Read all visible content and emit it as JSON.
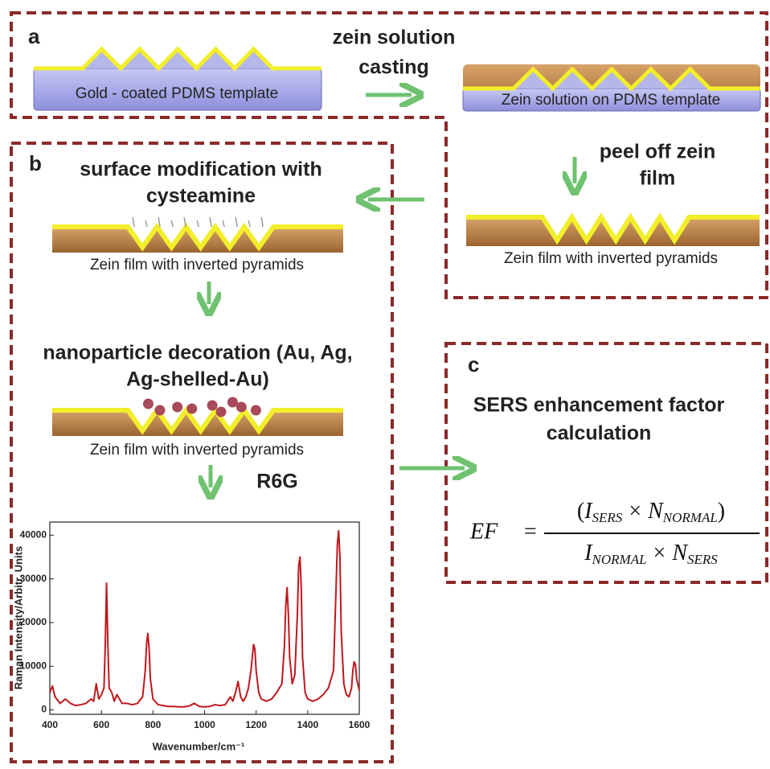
{
  "panels": {
    "a": "a",
    "b": "b",
    "c": "c"
  },
  "steps": {
    "casting": [
      "zein solution",
      "casting"
    ],
    "peel": [
      "peel off zein",
      "film"
    ],
    "surface": [
      "surface modification with",
      "cysteamine"
    ],
    "decoration": [
      "nanoparticle decoration (Au, Ag,",
      "Ag-shelled-Au)"
    ],
    "r6g": "R6G",
    "sers": [
      "SERS enhancement factor",
      "calculation"
    ]
  },
  "captions": {
    "template": "Gold - coated PDMS template",
    "solution": "Zein solution on PDMS template",
    "film_peeled": "Zein film with inverted pyramids",
    "film_modified": "Zein film with inverted pyramids",
    "film_decorated": "Zein film with inverted pyramids"
  },
  "equation": {
    "lhs": "EF",
    "equals": "=",
    "open": "(",
    "close": ")",
    "times": "×",
    "terms": [
      {
        "base": "I",
        "sub": "SERS"
      },
      {
        "base": "N",
        "sub": "NORMAL"
      },
      {
        "base": "I",
        "sub": "NORMAL"
      },
      {
        "base": "N",
        "sub": "SERS"
      }
    ]
  },
  "chart_data": {
    "type": "line",
    "x_label": "Wavenumber/cm⁻¹",
    "y_label": "Raman Intensity/Arbitr. Units",
    "color": "#c0181c",
    "xlim": [
      400,
      1600
    ],
    "xticks": [
      400,
      600,
      800,
      1000,
      1200,
      1400,
      1600
    ],
    "ylim": [
      -1000,
      43000
    ],
    "yticks": [
      0,
      10000,
      20000,
      30000,
      40000
    ],
    "x": [
      400,
      410,
      420,
      440,
      460,
      480,
      500,
      520,
      540,
      560,
      570,
      580,
      590,
      600,
      610,
      615,
      620,
      625,
      630,
      640,
      650,
      660,
      680,
      700,
      720,
      740,
      760,
      770,
      775,
      780,
      785,
      790,
      800,
      820,
      840,
      860,
      880,
      900,
      920,
      940,
      960,
      980,
      1000,
      1020,
      1040,
      1060,
      1080,
      1100,
      1110,
      1120,
      1130,
      1140,
      1150,
      1160,
      1170,
      1180,
      1185,
      1190,
      1195,
      1200,
      1210,
      1220,
      1240,
      1260,
      1280,
      1300,
      1310,
      1315,
      1320,
      1325,
      1330,
      1340,
      1350,
      1360,
      1365,
      1370,
      1375,
      1380,
      1390,
      1400,
      1420,
      1440,
      1460,
      1480,
      1500,
      1510,
      1515,
      1520,
      1525,
      1530,
      1540,
      1550,
      1560,
      1570,
      1575,
      1580,
      1585,
      1590,
      1600
    ],
    "values": [
      4000,
      5500,
      3000,
      1500,
      2500,
      1500,
      1000,
      1200,
      1500,
      2500,
      2000,
      6000,
      2500,
      3500,
      5000,
      15000,
      29000,
      15000,
      5000,
      4000,
      2000,
      3500,
      1500,
      1500,
      1200,
      1500,
      3000,
      9000,
      15000,
      17500,
      14000,
      7000,
      2500,
      1200,
      1000,
      800,
      800,
      700,
      700,
      900,
      1500,
      800,
      700,
      800,
      1200,
      1000,
      1200,
      3000,
      2000,
      4000,
      6500,
      3000,
      2000,
      3000,
      5000,
      9000,
      12000,
      15000,
      14000,
      9000,
      4000,
      2500,
      2000,
      2500,
      4000,
      6000,
      15000,
      24000,
      28000,
      22000,
      12000,
      6000,
      8000,
      22000,
      33000,
      35000,
      28000,
      12000,
      4000,
      2500,
      2000,
      2500,
      3500,
      5000,
      9000,
      28000,
      38000,
      41000,
      35000,
      18000,
      6000,
      3500,
      3000,
      5000,
      9000,
      11000,
      10500,
      7000,
      4500
    ]
  }
}
